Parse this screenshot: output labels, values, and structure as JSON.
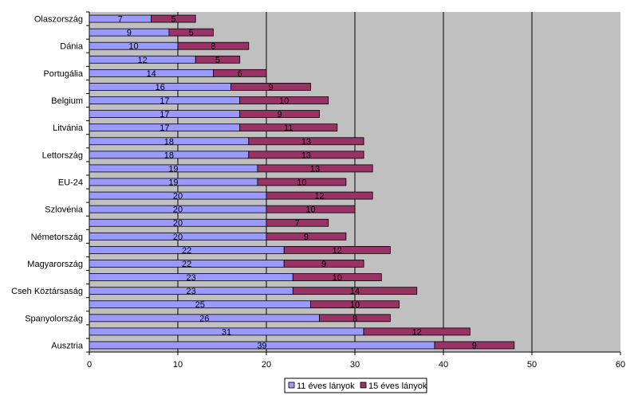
{
  "chart_data": {
    "type": "bar",
    "orientation": "horizontal",
    "stacked": true,
    "title": "",
    "xlabel": "",
    "ylabel": "",
    "xlim": [
      0,
      60
    ],
    "xticks": [
      0,
      10,
      20,
      30,
      40,
      50,
      60
    ],
    "grid": true,
    "legend_position": "bottom",
    "categories": [
      "Olaszország",
      "",
      "Dánia",
      "",
      "Portugália",
      "",
      "Belgium",
      "",
      "Litvánia",
      "",
      "Lettország",
      "",
      "EU-24",
      "",
      "Szlovénia",
      "",
      "Németország",
      "",
      "Magyarország",
      "",
      "Cseh Köztársaság",
      "",
      "Spanyolország",
      "",
      "Ausztria"
    ],
    "series": [
      {
        "name": "11 éves lányok",
        "color": "#9999ff",
        "values": [
          7,
          9,
          10,
          12,
          14,
          16,
          17,
          17,
          17,
          18,
          18,
          19,
          19,
          20,
          20,
          20,
          20,
          22,
          22,
          23,
          23,
          25,
          26,
          31,
          39
        ]
      },
      {
        "name": "15 éves lányok",
        "color": "#993366",
        "values": [
          5,
          5,
          8,
          5,
          6,
          9,
          10,
          9,
          11,
          13,
          13,
          13,
          10,
          12,
          10,
          7,
          9,
          12,
          9,
          10,
          14,
          10,
          8,
          12,
          9
        ]
      }
    ],
    "plot_background": "#c0c0c0"
  }
}
